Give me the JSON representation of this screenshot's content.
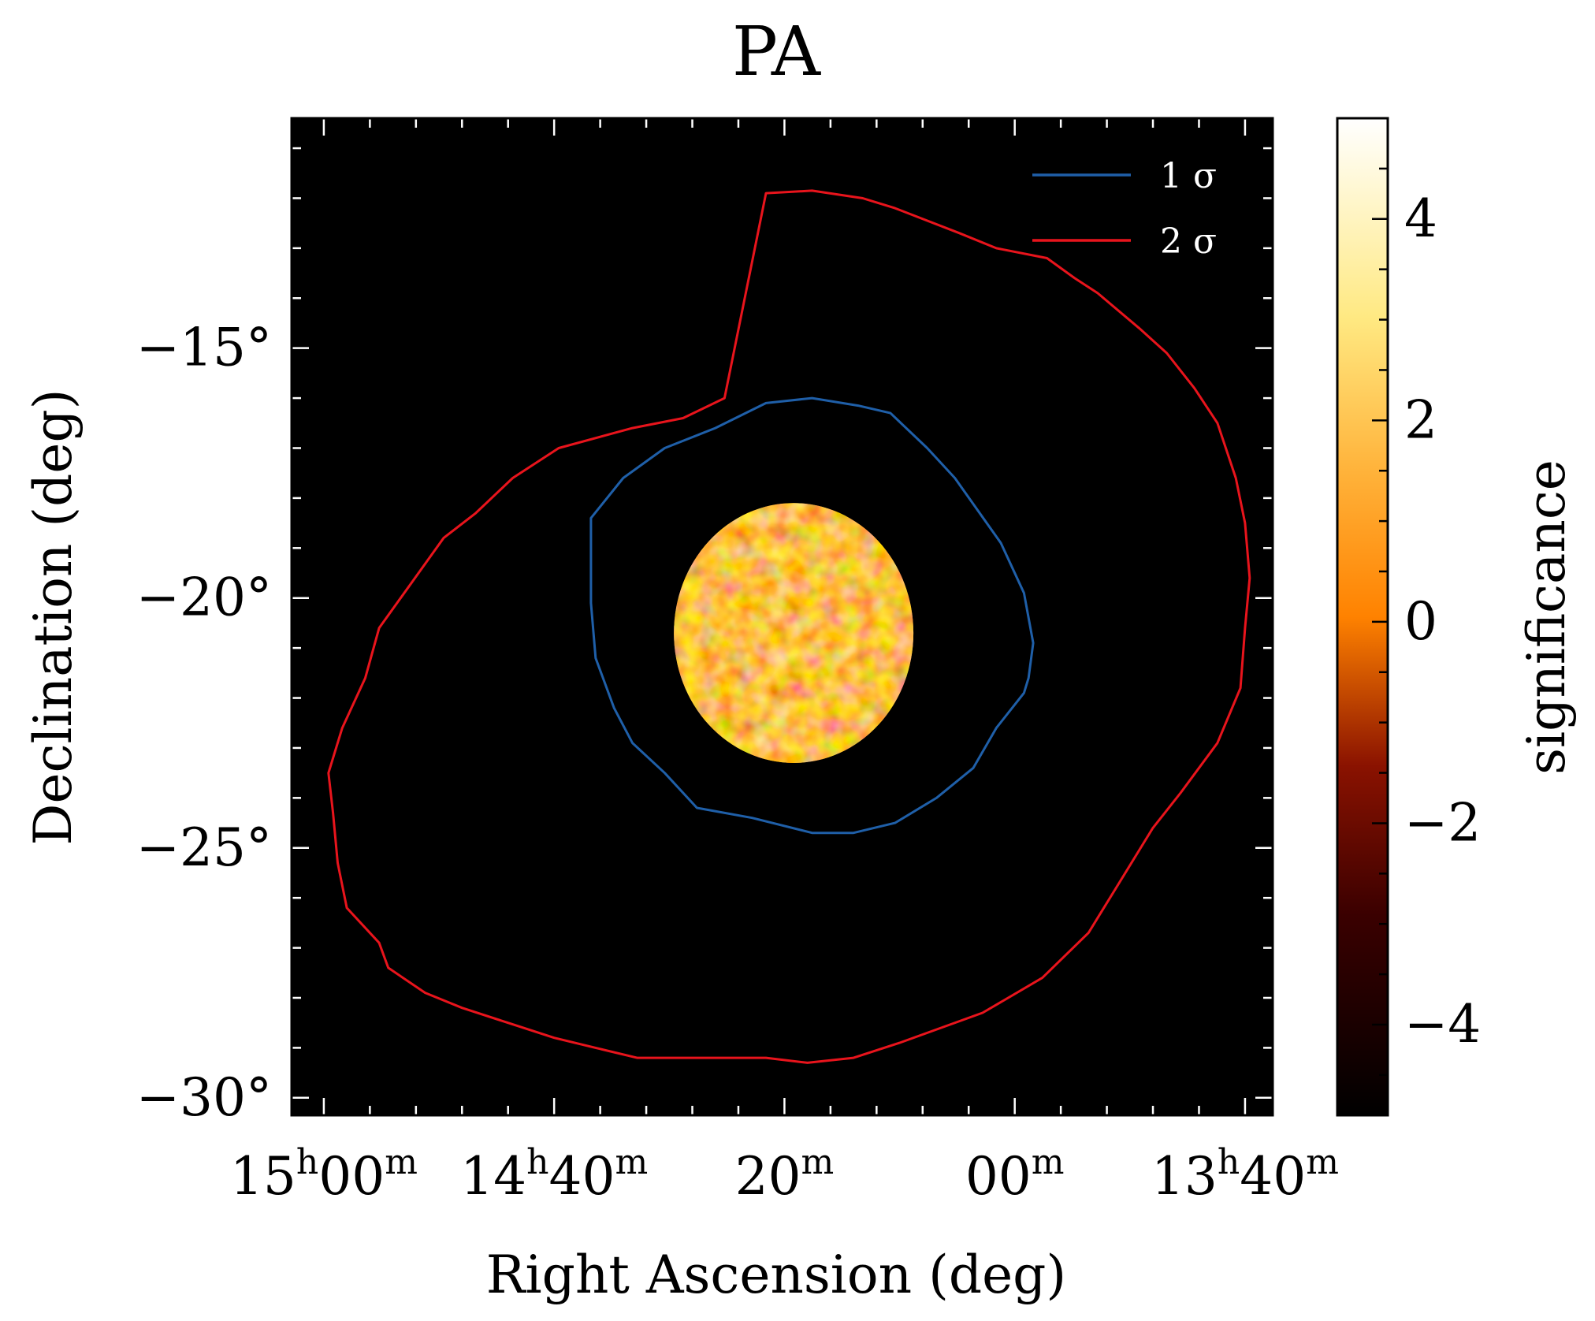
{
  "chart_data": {
    "type": "heatmap",
    "title": "PA",
    "xlabel": "Right Ascension (deg)",
    "ylabel": "Declination (deg)",
    "colorbar_label": "significance",
    "colormap": "afmhot",
    "background_color": "#000000",
    "x_ticks": [
      {
        "value": 225,
        "label": [
          "15",
          "h",
          "00",
          "m"
        ]
      },
      {
        "value": 220,
        "label": [
          "14",
          "h",
          "40",
          "m"
        ]
      },
      {
        "value": 215,
        "label": [
          "",
          "",
          "20",
          "m"
        ]
      },
      {
        "value": 210,
        "label": [
          "",
          "",
          "00",
          "m"
        ]
      },
      {
        "value": 205,
        "label": [
          "13",
          "h",
          "40",
          "m"
        ]
      }
    ],
    "y_ticks": [
      {
        "value": -15,
        "label": "−15°"
      },
      {
        "value": -20,
        "label": "−20°"
      },
      {
        "value": -25,
        "label": "−25°"
      },
      {
        "value": -30,
        "label": "−30°"
      }
    ],
    "xlim": [
      225.7,
      204.4
    ],
    "ylim": [
      -30.35,
      -10.4
    ],
    "color_range": [
      -4.9,
      5.0
    ],
    "colorbar_ticks": [
      {
        "value": 4,
        "label": "4"
      },
      {
        "value": 2,
        "label": "2"
      },
      {
        "value": 0,
        "label": "0"
      },
      {
        "value": -2,
        "label": "−2"
      },
      {
        "value": -4,
        "label": "−4"
      }
    ],
    "data_disk": {
      "center_ra": 214.8,
      "center_dec": -20.7,
      "radius_deg": 2.6
    },
    "legend": {
      "placement": "top-right",
      "entries": [
        {
          "name": "1 σ",
          "color": "#1f5fa8"
        },
        {
          "name": "2 σ",
          "color": "#e8141c"
        }
      ]
    },
    "series": [
      {
        "name": "1 σ",
        "color": "#1f5fa8",
        "ra": [
          214.4,
          213.4,
          212.7,
          211.9,
          211.3,
          210.3,
          209.8,
          209.6,
          209.7,
          209.8,
          210.4,
          210.9,
          211.7,
          212.6,
          213.5,
          214.4,
          215.7,
          216.9,
          217.6,
          218.3,
          218.7,
          219.1,
          219.2,
          219.2,
          219.2,
          218.5,
          217.6,
          216.5,
          215.4
        ],
        "dec": [
          -16.0,
          -16.15,
          -16.3,
          -17.0,
          -17.6,
          -18.9,
          -19.9,
          -20.9,
          -21.6,
          -21.9,
          -22.6,
          -23.4,
          -24.0,
          -24.5,
          -24.7,
          -24.7,
          -24.4,
          -24.2,
          -23.5,
          -22.9,
          -22.2,
          -21.2,
          -20.1,
          -19.4,
          -18.4,
          -17.6,
          -17.0,
          -16.6,
          -16.1
        ]
      },
      {
        "name": "2 σ",
        "color": "#e8141c",
        "ra": [
          215.4,
          214.4,
          213.3,
          212.6,
          211.2,
          210.4,
          209.3,
          208.7,
          208.2,
          207.3,
          206.7,
          206.1,
          205.6,
          205.2,
          205.0,
          204.9,
          205.0,
          205.1,
          205.6,
          206.4,
          207.0,
          207.8,
          208.4,
          209.4,
          210.7,
          212.5,
          213.5,
          214.5,
          215.4,
          216.3,
          218.2,
          219.1,
          220.0,
          221.0,
          222.0,
          222.8,
          223.6,
          223.8,
          224.5,
          224.7,
          224.8,
          224.9,
          224.6,
          224.1,
          223.8,
          223.1,
          222.4,
          221.7,
          220.9,
          219.9,
          218.3,
          217.2,
          216.3
        ],
        "dec": [
          -11.9,
          -11.85,
          -12.0,
          -12.2,
          -12.7,
          -13.0,
          -13.2,
          -13.6,
          -13.9,
          -14.6,
          -15.1,
          -15.8,
          -16.5,
          -17.6,
          -18.5,
          -19.6,
          -20.6,
          -21.8,
          -22.9,
          -23.9,
          -24.6,
          -25.8,
          -26.7,
          -27.6,
          -28.3,
          -28.9,
          -29.2,
          -29.3,
          -29.2,
          -29.2,
          -29.2,
          -29.0,
          -28.8,
          -28.5,
          -28.2,
          -27.9,
          -27.4,
          -26.9,
          -26.2,
          -25.3,
          -24.3,
          -23.5,
          -22.6,
          -21.6,
          -20.6,
          -19.7,
          -18.8,
          -18.3,
          -17.6,
          -17.0,
          -16.6,
          -16.4,
          -16.0
        ]
      }
    ]
  }
}
